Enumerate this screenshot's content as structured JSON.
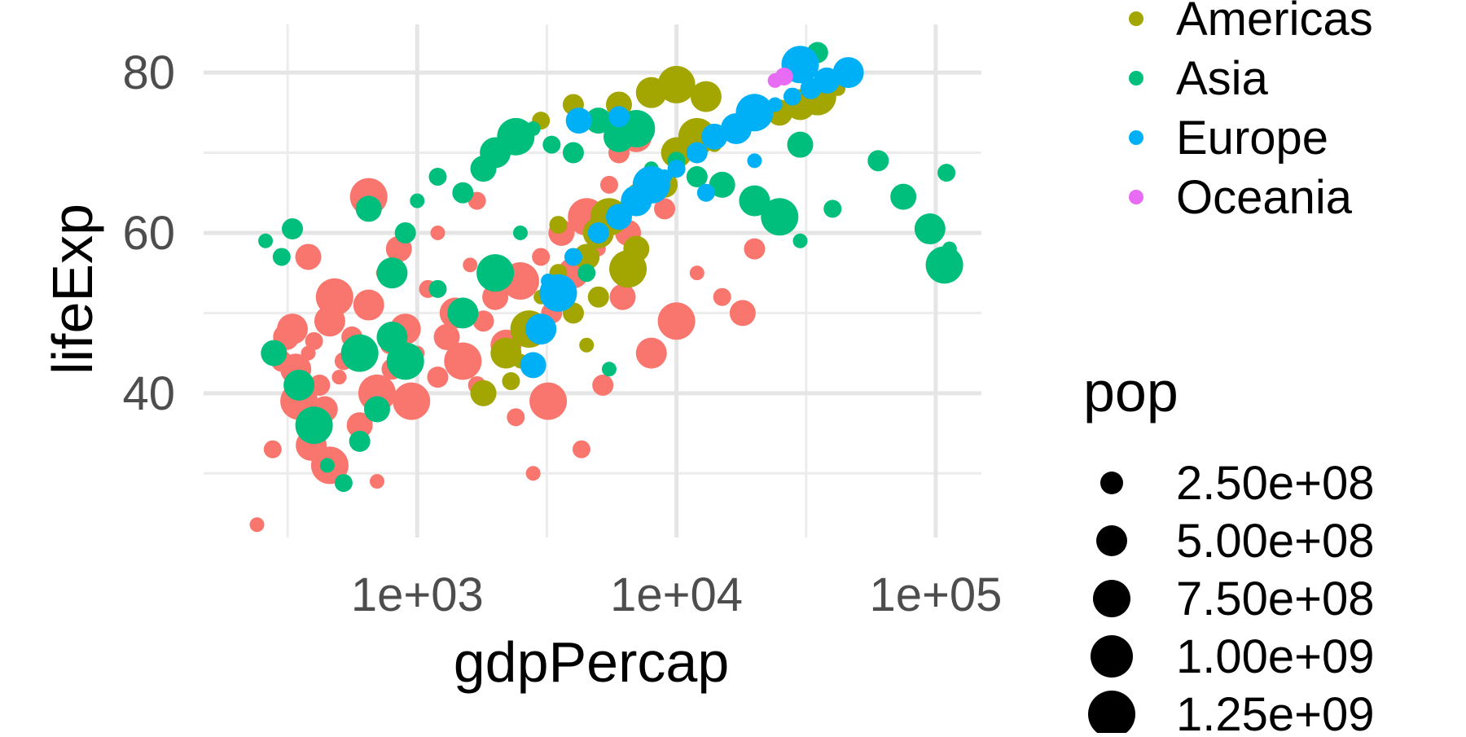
{
  "chart_data": {
    "type": "scatter",
    "title": "",
    "xlabel": "gdpPercap",
    "ylabel": "lifeExp",
    "x_scale": "log10",
    "xlim": [
      150,
      150000
    ],
    "ylim": [
      22,
      86
    ],
    "x_ticks": [
      {
        "value": 1000,
        "label": "1e+03"
      },
      {
        "value": 10000,
        "label": "1e+04"
      },
      {
        "value": 100000,
        "label": "1e+05"
      }
    ],
    "y_ticks": [
      {
        "value": 40,
        "label": "40"
      },
      {
        "value": 60,
        "label": "60"
      },
      {
        "value": 80,
        "label": "80"
      }
    ],
    "grid": true,
    "legend_placement": "right",
    "color_legend": {
      "entries": [
        {
          "label": "Americas",
          "color": "#A3A500"
        },
        {
          "label": "Asia",
          "color": "#00BF7D"
        },
        {
          "label": "Europe",
          "color": "#00B0F6"
        },
        {
          "label": "Oceania",
          "color": "#E76BF3"
        }
      ]
    },
    "size_legend": {
      "title": "pop",
      "entries": [
        {
          "value": 250000000,
          "label": "2.50e+08"
        },
        {
          "value": 500000000,
          "label": "5.00e+08"
        },
        {
          "value": 750000000,
          "label": "7.50e+08"
        },
        {
          "value": 1000000000,
          "label": "1.00e+09"
        },
        {
          "value": 1250000000,
          "label": "1.25e+09"
        }
      ]
    },
    "series": [
      {
        "color": "#F8766D",
        "points": [
          [
            241,
            23.6
          ],
          [
            277,
            33
          ],
          [
            300,
            44
          ],
          [
            312,
            47
          ],
          [
            340,
            43
          ],
          [
            350,
            39
          ],
          [
            380,
            45
          ],
          [
            400,
            46.5
          ],
          [
            420,
            41
          ],
          [
            440,
            38
          ],
          [
            460,
            49
          ],
          [
            480,
            52
          ],
          [
            500,
            42
          ],
          [
            520,
            44
          ],
          [
            560,
            47
          ],
          [
            600,
            36
          ],
          [
            650,
            51
          ],
          [
            700,
            40
          ],
          [
            740,
            55
          ],
          [
            780,
            46
          ],
          [
            800,
            43
          ],
          [
            850,
            58
          ],
          [
            900,
            48
          ],
          [
            950,
            39
          ],
          [
            1000,
            45
          ],
          [
            1100,
            53
          ],
          [
            1200,
            42
          ],
          [
            1300,
            47
          ],
          [
            1400,
            50
          ],
          [
            1500,
            44
          ],
          [
            1600,
            56
          ],
          [
            1700,
            41
          ],
          [
            1800,
            49
          ],
          [
            2000,
            52
          ],
          [
            2200,
            46
          ],
          [
            2500,
            54
          ],
          [
            2700,
            44
          ],
          [
            3000,
            57
          ],
          [
            3300,
            50
          ],
          [
            3600,
            60
          ],
          [
            4000,
            55
          ],
          [
            4500,
            62
          ],
          [
            5000,
            58
          ],
          [
            5500,
            66
          ],
          [
            6000,
            70
          ],
          [
            6500,
            60
          ],
          [
            7000,
            72
          ],
          [
            3200,
            39
          ],
          [
            2800,
            30
          ],
          [
            4300,
            33
          ],
          [
            5200,
            41
          ],
          [
            6200,
            52
          ],
          [
            8000,
            45
          ],
          [
            10000,
            49
          ],
          [
            12000,
            55
          ],
          [
            15000,
            52
          ],
          [
            20000,
            58
          ],
          [
            18000,
            50
          ],
          [
            390,
            33.5
          ],
          [
            460,
            31
          ],
          [
            700,
            29
          ],
          [
            2400,
            37
          ],
          [
            9000,
            63
          ],
          [
            380,
            57
          ],
          [
            330,
            48
          ],
          [
            650,
            64.5
          ],
          [
            1200,
            60
          ],
          [
            1700,
            64
          ]
        ]
      },
      {
        "color": "#A3A500",
        "points": [
          [
            1800,
            40
          ],
          [
            2200,
            45
          ],
          [
            2700,
            48
          ],
          [
            3000,
            52
          ],
          [
            3500,
            55
          ],
          [
            4000,
            50
          ],
          [
            4500,
            57
          ],
          [
            5000,
            60
          ],
          [
            5500,
            62
          ],
          [
            6000,
            63
          ],
          [
            7000,
            65
          ],
          [
            8000,
            67
          ],
          [
            9000,
            66
          ],
          [
            10000,
            70
          ],
          [
            12000,
            72
          ],
          [
            14000,
            71
          ],
          [
            17000,
            73
          ],
          [
            20000,
            74
          ],
          [
            25000,
            75
          ],
          [
            30000,
            76
          ],
          [
            35000,
            77
          ],
          [
            42000,
            78
          ],
          [
            3000,
            74
          ],
          [
            4000,
            76
          ],
          [
            6000,
            76
          ],
          [
            8000,
            77.5
          ],
          [
            10000,
            78.5
          ],
          [
            2500,
            44
          ],
          [
            3500,
            61
          ],
          [
            5000,
            52
          ],
          [
            7000,
            58
          ],
          [
            13000,
            77
          ],
          [
            6500,
            55.5
          ],
          [
            4500,
            46
          ],
          [
            2300,
            41.5
          ]
        ]
      },
      {
        "color": "#00BF7D",
        "points": [
          [
            260,
            59
          ],
          [
            300,
            57
          ],
          [
            330,
            60.5
          ],
          [
            280,
            45
          ],
          [
            350,
            41
          ],
          [
            400,
            36
          ],
          [
            450,
            31
          ],
          [
            520,
            28.8
          ],
          [
            600,
            34
          ],
          [
            700,
            38
          ],
          [
            800,
            47
          ],
          [
            900,
            44
          ],
          [
            1000,
            64
          ],
          [
            1200,
            67
          ],
          [
            1500,
            65
          ],
          [
            1800,
            68
          ],
          [
            2000,
            70
          ],
          [
            2400,
            72
          ],
          [
            2800,
            73
          ],
          [
            3300,
            71
          ],
          [
            4000,
            70
          ],
          [
            5000,
            74
          ],
          [
            6000,
            72
          ],
          [
            7000,
            73
          ],
          [
            8000,
            68
          ],
          [
            10000,
            69
          ],
          [
            12000,
            67
          ],
          [
            15000,
            66
          ],
          [
            20000,
            64
          ],
          [
            25000,
            62
          ],
          [
            30000,
            59
          ],
          [
            40000,
            63
          ],
          [
            60000,
            69
          ],
          [
            75000,
            64.5
          ],
          [
            95000,
            60.5
          ],
          [
            108000,
            56
          ],
          [
            113000,
            58
          ],
          [
            110000,
            67.5
          ],
          [
            35000,
            82.5
          ],
          [
            30000,
            71
          ],
          [
            1500,
            50
          ],
          [
            2000,
            55
          ],
          [
            2500,
            60
          ],
          [
            1200,
            53
          ],
          [
            900,
            60
          ],
          [
            650,
            63
          ],
          [
            800,
            55
          ],
          [
            600,
            45
          ],
          [
            5500,
            43
          ],
          [
            4500,
            55
          ]
        ]
      },
      {
        "color": "#00B0F6",
        "points": [
          [
            2800,
            43.5
          ],
          [
            3000,
            48
          ],
          [
            3500,
            52.5
          ],
          [
            3200,
            54
          ],
          [
            4000,
            57
          ],
          [
            5000,
            60
          ],
          [
            6000,
            62
          ],
          [
            7000,
            64
          ],
          [
            8000,
            66
          ],
          [
            9000,
            67
          ],
          [
            10000,
            68
          ],
          [
            12000,
            70
          ],
          [
            14000,
            72
          ],
          [
            17000,
            73
          ],
          [
            20000,
            75
          ],
          [
            24000,
            76
          ],
          [
            28000,
            77
          ],
          [
            33000,
            78
          ],
          [
            38000,
            79
          ],
          [
            46000,
            80
          ],
          [
            30000,
            81
          ],
          [
            20000,
            69
          ],
          [
            13000,
            65
          ],
          [
            6000,
            74.5
          ],
          [
            4200,
            74
          ]
        ]
      },
      {
        "color": "#E76BF3",
        "points": [
          [
            24000,
            79
          ],
          [
            26000,
            79.5
          ]
        ]
      }
    ]
  }
}
